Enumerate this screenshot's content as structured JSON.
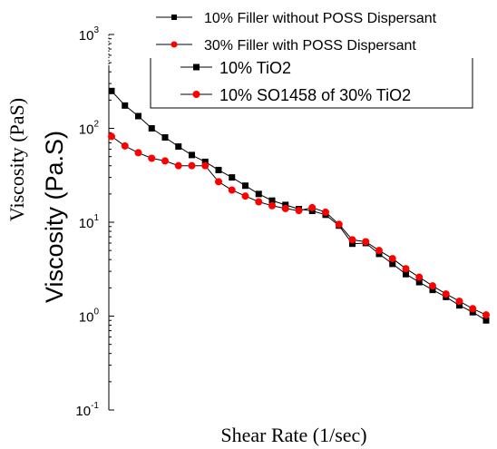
{
  "chart_data": {
    "type": "line",
    "x_scale": "log",
    "y_scale": "log",
    "ylim": [
      0.1,
      1000
    ],
    "grid": false,
    "xlabel": "Shear Rate (1/sec)",
    "ylabel_back": "Viscosity (PaS)",
    "ylabel": "Viscosity (Pa.S)",
    "y_ticks": [
      {
        "base": "10",
        "exp": "-1",
        "value": 0.1
      },
      {
        "base": "10",
        "exp": "0",
        "value": 1
      },
      {
        "base": "10",
        "exp": "1",
        "value": 10
      },
      {
        "base": "10",
        "exp": "2",
        "value": 100
      },
      {
        "base": "10",
        "exp": "3",
        "value": 1000
      }
    ],
    "legend_placement": "top-right",
    "legend_front": [
      {
        "label": "10% Filler without POSS Dispersant",
        "series": 0
      },
      {
        "label": "30% Filler with POSS Dispersant",
        "series": 1
      }
    ],
    "legend_back": [
      {
        "label": "10% TiO2",
        "series": 0
      },
      {
        "label": "10% SO1458 of 30% TiO2",
        "series": 1
      }
    ],
    "series": [
      {
        "color": "#000000",
        "marker": "square",
        "values": [
          250,
          175,
          135,
          100,
          80,
          64,
          52,
          44,
          36,
          30,
          24.5,
          20,
          17,
          15.3,
          13.8,
          13.2,
          12,
          9.2,
          5.9,
          6,
          4.6,
          3.6,
          2.8,
          2.3,
          1.9,
          1.6,
          1.3,
          1.1,
          0.9
        ]
      },
      {
        "color": "#ff0000",
        "marker": "circle",
        "values": [
          82,
          65,
          55,
          48,
          45,
          40,
          40,
          40,
          27,
          22,
          19,
          16.5,
          15,
          14,
          13.3,
          14.3,
          12.8,
          9.5,
          6.5,
          6.2,
          5,
          4.1,
          3.2,
          2.6,
          2.1,
          1.72,
          1.44,
          1.2,
          1.03
        ]
      }
    ]
  }
}
